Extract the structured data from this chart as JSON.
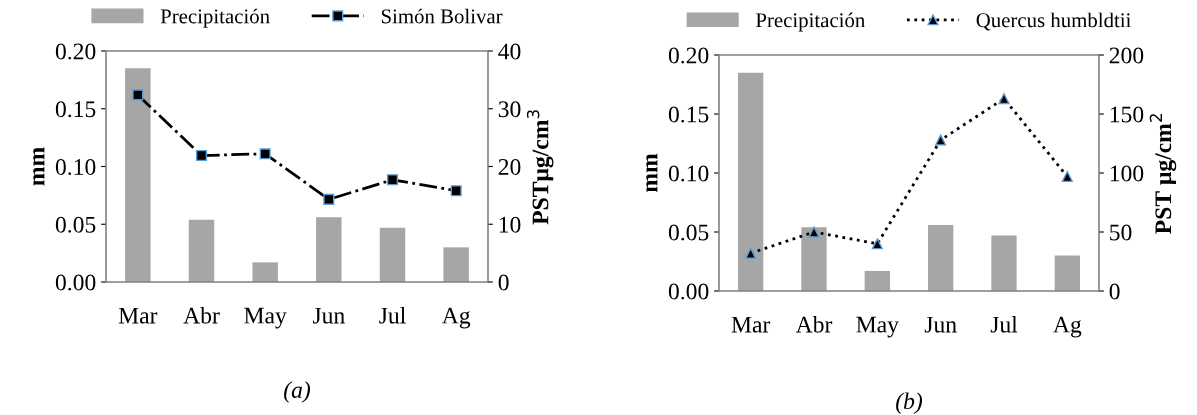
{
  "chart_data": [
    {
      "type": "bar",
      "categories": [
        "Mar",
        "Abr",
        "May",
        "Jun",
        "Jul",
        "Ag"
      ],
      "ylabel": "mm",
      "y2label": "PSTμg/cm$^{3}$",
      "ylim": [
        0,
        0.2
      ],
      "yticks": [
        {
          "value": 0,
          "label": "0.00"
        },
        {
          "value": 0.05,
          "label": "0.05"
        },
        {
          "value": 0.1,
          "label": "0.10"
        },
        {
          "value": 0.15,
          "label": "0.15"
        },
        {
          "value": 0.2,
          "label": "0.20"
        }
      ],
      "y2lim": [
        0,
        40
      ],
      "y2ticks": [
        0,
        10,
        20,
        30,
        40
      ],
      "legend": "top",
      "grid": false,
      "annotations": [
        "(a)"
      ],
      "series": [
        {
          "name": "Precipitación",
          "color": "#a6a6a6",
          "values": [
            0.185,
            0.054,
            0.017,
            0.056,
            0.047,
            0.03
          ]
        },
        {
          "name": "Simón Bolivar",
          "type": "line",
          "axis": "y2",
          "color": "#000000",
          "marker": "square",
          "line_style": "dashdot",
          "values": [
            32.4,
            21.9,
            22.2,
            14.3,
            17.7,
            15.8
          ]
        }
      ]
    },
    {
      "type": "bar",
      "categories": [
        "Mar",
        "Abr",
        "May",
        "Jun",
        "Jul",
        "Ag"
      ],
      "ylabel": "mm",
      "y2label": "PST μg/cm$^{2}$",
      "ylim": [
        0,
        0.2
      ],
      "yticks": [
        {
          "value": 0,
          "label": "0.00"
        },
        {
          "value": 0.05,
          "label": "0.05"
        },
        {
          "value": 0.1,
          "label": "0.10"
        },
        {
          "value": 0.15,
          "label": "0.15"
        },
        {
          "value": 0.2,
          "label": "0.20"
        }
      ],
      "y2lim": [
        0,
        200
      ],
      "y2ticks": [
        0,
        50,
        100,
        150,
        200
      ],
      "legend": "top",
      "grid": false,
      "annotations": [
        "(b)"
      ],
      "series": [
        {
          "name": "Precipitación",
          "color": "#a6a6a6",
          "values": [
            0.185,
            0.054,
            0.017,
            0.056,
            0.047,
            0.03
          ]
        },
        {
          "name": "Quercus humbldtii",
          "type": "line",
          "axis": "y2",
          "color": "#000000",
          "marker": "triangle",
          "line_style": "dotted",
          "values": [
            32,
            50,
            40,
            128,
            163,
            97
          ]
        }
      ]
    }
  ]
}
